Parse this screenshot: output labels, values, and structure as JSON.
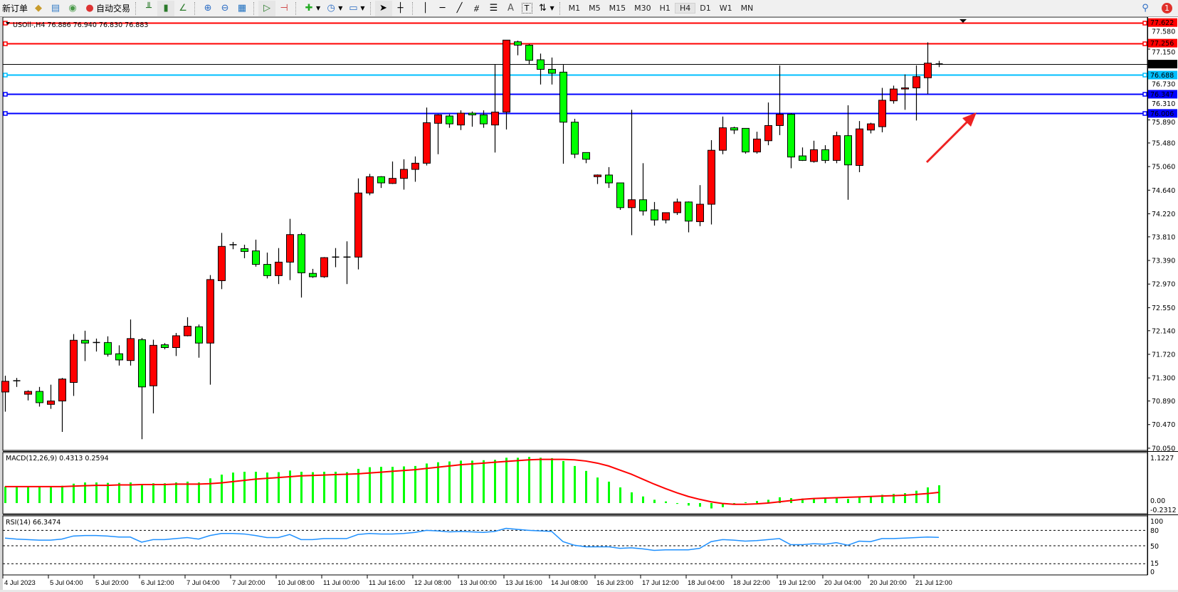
{
  "toolbar": {
    "new_order": "新订单",
    "auto_trading": "自动交易",
    "icons": [
      "market-watch-icon",
      "data-window-icon",
      "navigator-icon",
      "auto-trading-icon",
      "bar-chart-icon",
      "candlestick-icon",
      "line-chart-icon",
      "zoom-in-icon",
      "zoom-out-icon",
      "tile-windows-icon",
      "auto-scroll-icon",
      "chart-shift-icon",
      "new-chart-icon",
      "periods-clock-icon",
      "templates-icon",
      "cursor-icon",
      "crosshair-icon",
      "vertical-line-icon",
      "horizontal-line-icon",
      "trendline-icon",
      "fibonacci-expansion-icon",
      "fibonacci-retracement-icon",
      "text-icon",
      "text-label-icon",
      "arrows-icon"
    ],
    "text_tool": "A",
    "timeframes": [
      "M1",
      "M5",
      "M15",
      "M30",
      "H1",
      "H4",
      "D1",
      "W1",
      "MN"
    ],
    "active_timeframe": "H4",
    "notification_count": "1"
  },
  "chart": {
    "title": "USOil-,H4  76.886 76.940 76.830 76.883",
    "symbol": "USOil-",
    "timeframe": "H4",
    "bull_color": "#ff0000",
    "bear_color": "#00ff00"
  },
  "chart_data": [
    {
      "type": "candlestick",
      "ylim": [
        70.05,
        77.622
      ],
      "ticks": [
        "77.580",
        "77.150",
        "76.730",
        "76.310",
        "75.890",
        "75.480",
        "75.060",
        "74.640",
        "74.220",
        "73.810",
        "73.390",
        "72.970",
        "72.550",
        "72.140",
        "71.720",
        "71.300",
        "70.890",
        "70.470",
        "70.050"
      ],
      "x_labels": [
        "4 Jul 2023",
        "5 Jul 04:00",
        "5 Jul 20:00",
        "6 Jul 12:00",
        "7 Jul 04:00",
        "7 Jul 20:00",
        "10 Jul 08:00",
        "11 Jul 00:00",
        "11 Jul 16:00",
        "12 Jul 08:00",
        "13 Jul 00:00",
        "13 Jul 16:00",
        "14 Jul 08:00",
        "16 Jul 23:00",
        "17 Jul 12:00",
        "18 Jul 04:00",
        "18 Jul 22:00",
        "19 Jul 12:00",
        "20 Jul 04:00",
        "20 Jul 20:00",
        "21 Jul 12:00"
      ],
      "ohlc": [
        [
          71.05,
          71.34,
          70.7,
          71.24
        ],
        [
          71.24,
          71.3,
          71.14,
          71.25
        ],
        [
          71.01,
          71.08,
          70.9,
          71.06
        ],
        [
          71.06,
          71.14,
          70.79,
          70.86
        ],
        [
          70.83,
          71.18,
          70.75,
          70.89
        ],
        [
          70.89,
          71.3,
          70.34,
          71.28
        ],
        [
          71.22,
          72.08,
          70.98,
          71.97
        ],
        [
          71.97,
          72.14,
          71.6,
          71.92
        ],
        [
          71.92,
          72.0,
          71.77,
          71.93
        ],
        [
          71.93,
          72.04,
          71.68,
          71.72
        ],
        [
          71.73,
          71.88,
          71.52,
          71.62
        ],
        [
          71.61,
          72.34,
          71.52,
          72.0
        ],
        [
          71.98,
          72.01,
          70.21,
          71.14
        ],
        [
          71.16,
          71.98,
          70.67,
          71.88
        ],
        [
          71.89,
          71.92,
          71.81,
          71.84
        ],
        [
          71.84,
          72.1,
          71.69,
          72.05
        ],
        [
          72.05,
          72.38,
          72.04,
          72.22
        ],
        [
          72.21,
          72.25,
          71.66,
          71.92
        ],
        [
          71.92,
          73.13,
          71.18,
          73.05
        ],
        [
          73.03,
          73.88,
          72.88,
          73.64
        ],
        [
          73.66,
          73.72,
          73.59,
          73.67
        ],
        [
          73.6,
          73.67,
          73.43,
          73.55
        ],
        [
          73.56,
          73.76,
          73.28,
          73.32
        ],
        [
          73.32,
          73.53,
          73.07,
          73.12
        ],
        [
          73.12,
          73.61,
          72.97,
          73.36
        ],
        [
          73.36,
          74.13,
          73.04,
          73.85
        ],
        [
          73.85,
          73.88,
          72.73,
          73.17
        ],
        [
          73.16,
          73.24,
          73.08,
          73.1
        ],
        [
          73.1,
          73.45,
          73.08,
          73.44
        ],
        [
          73.45,
          73.61,
          73.27,
          73.44
        ],
        [
          73.44,
          73.73,
          72.97,
          73.45
        ],
        [
          73.45,
          74.85,
          73.23,
          74.59
        ],
        [
          74.59,
          74.93,
          74.55,
          74.88
        ],
        [
          74.88,
          74.89,
          74.68,
          74.77
        ],
        [
          74.76,
          75.15,
          74.75,
          74.85
        ],
        [
          74.85,
          75.19,
          74.65,
          75.01
        ],
        [
          75.01,
          75.24,
          74.79,
          75.12
        ],
        [
          75.12,
          76.11,
          75.08,
          75.84
        ],
        [
          75.83,
          75.99,
          75.28,
          75.98
        ],
        [
          75.96,
          75.99,
          75.75,
          75.82
        ],
        [
          75.8,
          76.06,
          75.71,
          76.01
        ],
        [
          76.01,
          76.04,
          75.77,
          75.98
        ],
        [
          75.98,
          76.06,
          75.75,
          75.82
        ],
        [
          75.8,
          76.88,
          75.31,
          76.03
        ],
        [
          76.03,
          77.31,
          75.72,
          77.31
        ],
        [
          77.28,
          77.3,
          77.04,
          77.22
        ],
        [
          77.22,
          77.24,
          76.88,
          76.95
        ],
        [
          76.96,
          77.07,
          76.52,
          76.79
        ],
        [
          76.79,
          77.0,
          76.52,
          76.72
        ],
        [
          76.74,
          76.87,
          75.11,
          75.85
        ],
        [
          75.85,
          75.91,
          75.21,
          75.28
        ],
        [
          75.31,
          75.31,
          75.12,
          75.19
        ],
        [
          74.88,
          74.92,
          74.75,
          74.91
        ],
        [
          74.91,
          75.05,
          74.68,
          74.77
        ],
        [
          74.77,
          74.77,
          74.29,
          74.33
        ],
        [
          74.33,
          76.07,
          73.84,
          74.47
        ],
        [
          74.47,
          75.12,
          74.19,
          74.27
        ],
        [
          74.29,
          74.43,
          74.01,
          74.11
        ],
        [
          74.11,
          74.24,
          74.05,
          74.24
        ],
        [
          74.24,
          74.49,
          74.2,
          74.43
        ],
        [
          74.43,
          74.44,
          73.89,
          74.09
        ],
        [
          74.08,
          74.73,
          74.0,
          74.39
        ],
        [
          74.39,
          75.53,
          74.03,
          75.35
        ],
        [
          75.35,
          75.95,
          75.28,
          75.75
        ],
        [
          75.75,
          75.77,
          75.64,
          75.71
        ],
        [
          75.74,
          75.74,
          75.29,
          75.32
        ],
        [
          75.32,
          75.68,
          75.29,
          75.55
        ],
        [
          75.52,
          76.2,
          75.44,
          75.79
        ],
        [
          75.79,
          76.86,
          75.62,
          75.99
        ],
        [
          75.99,
          76.01,
          75.03,
          75.23
        ],
        [
          75.25,
          75.4,
          75.16,
          75.17
        ],
        [
          75.15,
          75.52,
          75.13,
          75.36
        ],
        [
          75.36,
          75.44,
          75.12,
          75.17
        ],
        [
          75.17,
          75.68,
          75.12,
          75.61
        ],
        [
          75.61,
          76.15,
          74.47,
          75.09
        ],
        [
          75.08,
          75.87,
          74.96,
          75.73
        ],
        [
          75.71,
          75.84,
          75.65,
          75.82
        ],
        [
          75.77,
          76.46,
          75.67,
          76.24
        ],
        [
          76.23,
          76.5,
          76.18,
          76.44
        ],
        [
          76.44,
          76.7,
          76.07,
          76.46
        ],
        [
          76.46,
          76.86,
          75.88,
          76.66
        ],
        [
          76.64,
          77.27,
          76.35,
          76.9
        ],
        [
          76.886,
          76.94,
          76.83,
          76.883
        ]
      ],
      "levels": [
        {
          "price": 77.622,
          "label": "77.622",
          "color": "#ff0000"
        },
        {
          "price": 77.256,
          "label": "77.256",
          "color": "#ff0000"
        },
        {
          "price": 76.883,
          "label": "76.883",
          "color": "#000000",
          "kind": "bid"
        },
        {
          "price": 76.688,
          "label": "76.688",
          "color": "#00bfff"
        },
        {
          "price": 76.347,
          "label": "76.347",
          "color": "#0000ff"
        },
        {
          "price": 76.006,
          "label": "76.006",
          "color": "#0000ff"
        }
      ],
      "annotation": {
        "type": "arrow",
        "color": "#ee2222"
      }
    },
    {
      "type": "bar+line",
      "title": "MACD(12,26,9) 0.4313 0.2594",
      "ylim": [
        -0.2312,
        1.1227
      ],
      "ticks": [
        "1.1227",
        "0.00",
        "-0.2312"
      ],
      "histogram_color": "#00ff00",
      "signal_color": "#ff0000",
      "histogram": [
        0.4,
        0.4,
        0.4,
        0.4,
        0.4,
        0.42,
        0.47,
        0.5,
        0.5,
        0.49,
        0.49,
        0.5,
        0.46,
        0.48,
        0.48,
        0.5,
        0.52,
        0.5,
        0.6,
        0.69,
        0.74,
        0.76,
        0.76,
        0.74,
        0.75,
        0.79,
        0.76,
        0.75,
        0.76,
        0.76,
        0.75,
        0.83,
        0.87,
        0.88,
        0.88,
        0.89,
        0.9,
        0.96,
        0.99,
        1.01,
        1.03,
        1.03,
        1.04,
        1.05,
        1.1,
        1.1,
        1.12,
        1.1,
        1.09,
        1.02,
        0.9,
        0.78,
        0.62,
        0.52,
        0.38,
        0.26,
        0.16,
        0.08,
        0.04,
        -0.02,
        -0.06,
        -0.09,
        -0.13,
        -0.1,
        -0.04,
        0.02,
        0.05,
        0.08,
        0.14,
        0.12,
        0.11,
        0.12,
        0.11,
        0.13,
        0.1,
        0.14,
        0.16,
        0.2,
        0.22,
        0.24,
        0.3,
        0.38,
        0.4313
      ],
      "signal": [
        0.4,
        0.4,
        0.4,
        0.4,
        0.4,
        0.4,
        0.41,
        0.42,
        0.43,
        0.43,
        0.44,
        0.44,
        0.45,
        0.45,
        0.45,
        0.46,
        0.46,
        0.46,
        0.47,
        0.49,
        0.52,
        0.55,
        0.58,
        0.6,
        0.62,
        0.64,
        0.66,
        0.67,
        0.68,
        0.69,
        0.7,
        0.71,
        0.73,
        0.75,
        0.77,
        0.79,
        0.81,
        0.84,
        0.87,
        0.9,
        0.93,
        0.95,
        0.97,
        0.99,
        1.01,
        1.03,
        1.05,
        1.06,
        1.06,
        1.06,
        1.05,
        1.02,
        0.97,
        0.9,
        0.8,
        0.7,
        0.58,
        0.46,
        0.35,
        0.25,
        0.16,
        0.09,
        0.03,
        -0.01,
        -0.03,
        -0.03,
        -0.02,
        0.0,
        0.03,
        0.06,
        0.09,
        0.11,
        0.12,
        0.13,
        0.14,
        0.15,
        0.16,
        0.17,
        0.18,
        0.19,
        0.21,
        0.23,
        0.2594
      ]
    },
    {
      "type": "line",
      "title": "RSI(14) 66.3474",
      "ylim": [
        0,
        100
      ],
      "ticks": [
        "100",
        "80",
        "50",
        "15",
        "0"
      ],
      "levels": [
        80,
        50,
        15
      ],
      "color": "#1e90ff",
      "values": [
        65,
        63,
        62,
        61,
        61,
        63,
        69,
        70,
        70,
        69,
        67,
        67,
        57,
        62,
        62,
        64,
        66,
        63,
        70,
        74,
        74,
        73,
        70,
        66,
        66,
        72,
        62,
        62,
        64,
        64,
        64,
        72,
        74,
        73,
        73,
        74,
        76,
        80,
        79,
        77,
        78,
        77,
        76,
        78,
        84,
        82,
        80,
        79,
        78,
        58,
        51,
        48,
        48,
        48,
        45,
        46,
        44,
        41,
        42,
        42,
        42,
        45,
        58,
        62,
        61,
        59,
        60,
        62,
        64,
        52,
        52,
        54,
        53,
        56,
        51,
        59,
        58,
        64,
        64,
        65,
        66,
        67,
        66.35
      ]
    }
  ]
}
